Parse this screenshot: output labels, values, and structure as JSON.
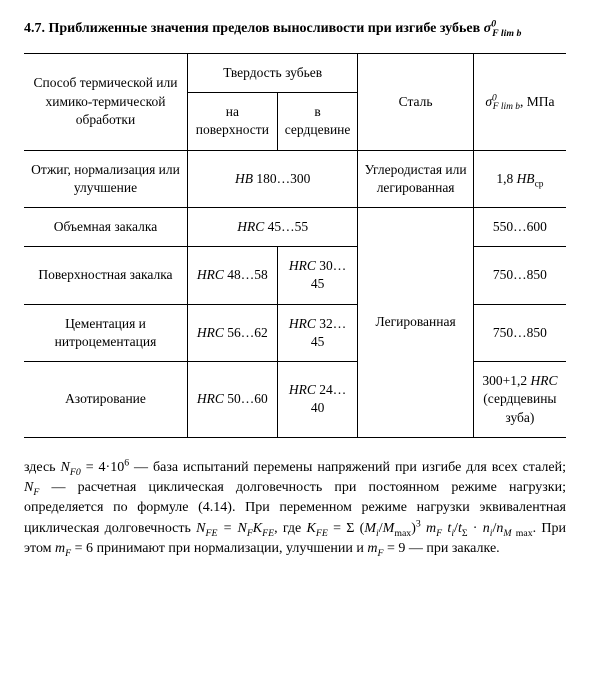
{
  "title_prefix": "4.7. Приближенные значения пределов выносливости при изгибе зубьев ",
  "header": {
    "col1": "Способ термической или химико-термической обработки",
    "col2": "Твердость зубьев",
    "col2a": "на поверхности",
    "col2b": "в сердцевине",
    "col3": "Сталь",
    "col4_unit": ", МПа"
  },
  "rows": [
    {
      "method": "Отжиг, нормализация или улучшение",
      "surface_span": "HB 180…300",
      "steel": "Углеродистая или легированная"
    },
    {
      "method": "Объемная закалка",
      "surface_span": "HRC 45…55",
      "sigma": "550…600"
    },
    {
      "method": "Поверхностная закалка",
      "surface": "HRC 48…58",
      "core": "HRC 30…45",
      "sigma": "750…850"
    },
    {
      "method": "Цементация и нитроцементация",
      "surface": "HRC 56…62",
      "core": "HRC 32…45",
      "sigma": "750…850"
    },
    {
      "method": "Азотирование",
      "surface": "HRC 50…60",
      "core": "HRC 24…40"
    }
  ],
  "legirovannaya": "Легированная",
  "sigma_r1_prefix": "1,8 ",
  "sigma_r1_var": "HB",
  "sigma_r1_sub": "ср",
  "sigma_r5_prefix": "300+1,2 ",
  "sigma_r5_var": "HRC",
  "sigma_r5_note": "(сердцевины зуба)",
  "para_parts": {
    "p1": "здесь ",
    "p2": " — база испытаний перемены напряжений при изгибе для всех сталей; ",
    "p3": " — расчетная циклическая долговечность при постоянном режиме нагрузки; определяется по формуле (4.14). При переменном режиме нагрузки эквивалентная циклическая долговечность ",
    "p4": ", где ",
    "p5": ". При этом ",
    "p6": " принимают при нормализации, улучшении и ",
    "p7": " — при закалке."
  },
  "formulas": {
    "nf0": "N",
    "nf0_sub": "F0",
    "nf0_eq": " = 4·10",
    "nf0_sup": "6",
    "nf": "N",
    "nf_sub": "F",
    "nfe_eq": "N_{FE} = N_F K_{FE}",
    "kfe_eq": "K_{FE} = Σ (M_i / M_max)^3 m_F t_i / t_Σ · n_i / n_{M max}",
    "mf6": "m_F = 6",
    "mf9": "m_F = 9"
  }
}
